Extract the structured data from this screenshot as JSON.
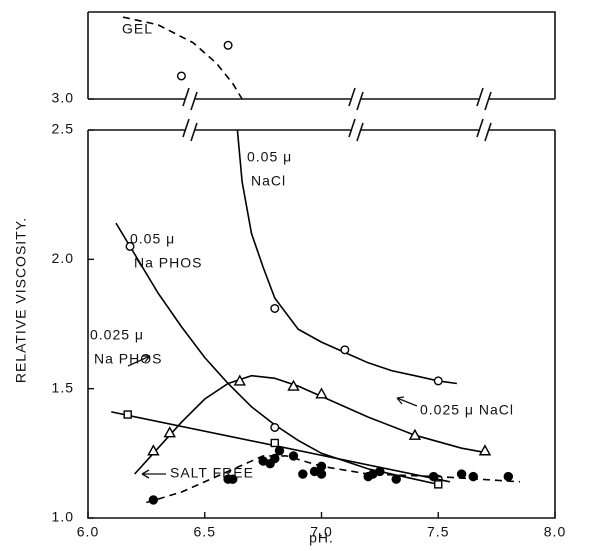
{
  "chart_data": [
    {
      "type": "scatter",
      "xlim": [
        6,
        8
      ],
      "ylim": [
        3.0,
        3.34
      ],
      "yticks": [
        {
          "value": 3,
          "label": "3.0"
        }
      ],
      "series": [
        {
          "marker": "circle",
          "filled": false,
          "color": "#000000",
          "x": [
            6.4,
            6.6
          ],
          "values": [
            3.09,
            3.21
          ],
          "curve": {
            "x": [
              6.15,
              6.3,
              6.45,
              6.55,
              6.62,
              6.66
            ],
            "y": [
              3.32,
              3.29,
              3.22,
              3.14,
              3.06,
              3.0
            ],
            "dash": true
          }
        }
      ],
      "annotations": [
        {
          "lines": [
            "GEL"
          ]
        }
      ]
    },
    {
      "type": "scatter",
      "xlim": [
        6,
        8
      ],
      "ylim": [
        1.0,
        2.5
      ],
      "xticks": [
        {
          "value": 6,
          "label": "6.0"
        },
        {
          "value": 6.5,
          "label": "6.5"
        },
        {
          "value": 7,
          "label": "7.0"
        },
        {
          "value": 7.5,
          "label": "7.5"
        },
        {
          "value": 8,
          "label": "8.0"
        }
      ],
      "yticks": [
        {
          "value": 1,
          "label": "1.0"
        },
        {
          "value": 1.5,
          "label": "1.5"
        },
        {
          "value": 2,
          "label": "2.0"
        },
        {
          "value": 2.5,
          "label": "2.5"
        }
      ],
      "xlabel": "pH.",
      "ylabel": "RELATIVE VISCOSITY.",
      "series": [
        {
          "marker": "circle",
          "filled": false,
          "color": "#000000",
          "x": [
            6.8,
            7.1,
            7.5
          ],
          "values": [
            1.81,
            1.65,
            1.53
          ],
          "curve": {
            "x": [
              6.64,
              6.66,
              6.7,
              6.75,
              6.8,
              6.9,
              7.0,
              7.1,
              7.2,
              7.3,
              7.4,
              7.5,
              7.58
            ],
            "y": [
              2.5,
              2.3,
              2.1,
              1.97,
              1.85,
              1.73,
              1.68,
              1.64,
              1.6,
              1.57,
              1.55,
              1.53,
              1.52
            ],
            "dash": false
          }
        },
        {
          "marker": "circle",
          "filled": false,
          "color": "#000000",
          "x": [
            6.18,
            6.8,
            7.5
          ],
          "values": [
            2.05,
            1.35,
            1.15
          ],
          "curve": {
            "x": [
              6.12,
              6.2,
              6.3,
              6.4,
              6.5,
              6.6,
              6.7,
              6.8,
              6.9,
              7.0,
              7.2,
              7.4,
              7.5
            ],
            "y": [
              2.14,
              2.02,
              1.87,
              1.74,
              1.62,
              1.52,
              1.43,
              1.36,
              1.3,
              1.25,
              1.19,
              1.15,
              1.13
            ],
            "dash": false
          }
        },
        {
          "marker": "square",
          "filled": false,
          "color": "#000000",
          "x": [
            6.17,
            6.8,
            7.5
          ],
          "values": [
            1.4,
            1.29,
            1.13
          ],
          "curve": {
            "x": [
              6.1,
              7.55
            ],
            "y": [
              1.41,
              1.14
            ],
            "dash": false
          }
        },
        {
          "marker": "triangle",
          "filled": false,
          "color": "#000000",
          "x": [
            6.28,
            6.35,
            6.65,
            6.88,
            7.0,
            7.4,
            7.7
          ],
          "values": [
            1.26,
            1.33,
            1.53,
            1.51,
            1.48,
            1.32,
            1.26
          ],
          "curve": {
            "x": [
              6.2,
              6.3,
              6.4,
              6.5,
              6.6,
              6.7,
              6.8,
              6.9,
              7.0,
              7.2,
              7.4,
              7.6,
              7.72
            ],
            "y": [
              1.17,
              1.27,
              1.37,
              1.46,
              1.52,
              1.55,
              1.54,
              1.51,
              1.47,
              1.39,
              1.32,
              1.27,
              1.25
            ],
            "dash": false
          }
        },
        {
          "marker": "circle",
          "filled": true,
          "color": "#000000",
          "x": [
            6.28,
            6.6,
            6.62,
            6.75,
            6.78,
            6.8,
            6.82,
            6.88,
            6.92,
            6.97,
            7.0,
            7.0,
            7.2,
            7.22,
            7.25,
            7.32,
            7.48,
            7.6,
            7.65,
            7.8
          ],
          "values": [
            1.07,
            1.15,
            1.15,
            1.22,
            1.21,
            1.23,
            1.26,
            1.24,
            1.17,
            1.18,
            1.2,
            1.17,
            1.16,
            1.17,
            1.18,
            1.15,
            1.16,
            1.17,
            1.16,
            1.16
          ],
          "curve": {
            "x": [
              6.25,
              6.4,
              6.6,
              6.75,
              6.85,
              7.0,
              7.2,
              7.5,
              7.85
            ],
            "y": [
              1.06,
              1.1,
              1.18,
              1.24,
              1.24,
              1.2,
              1.17,
              1.16,
              1.14
            ],
            "dash": true
          }
        }
      ],
      "annotations": [
        {
          "lines": [
            "0.05 μ",
            "NaCl"
          ]
        },
        {
          "lines": [
            "0.05 μ",
            "Na PHOS"
          ]
        },
        {
          "lines": [
            "0.025 μ",
            "Na PHOS"
          ]
        },
        {
          "lines": [
            "0.025 μ NaCl"
          ]
        },
        {
          "lines": [
            "SALT FREE"
          ]
        }
      ]
    }
  ]
}
